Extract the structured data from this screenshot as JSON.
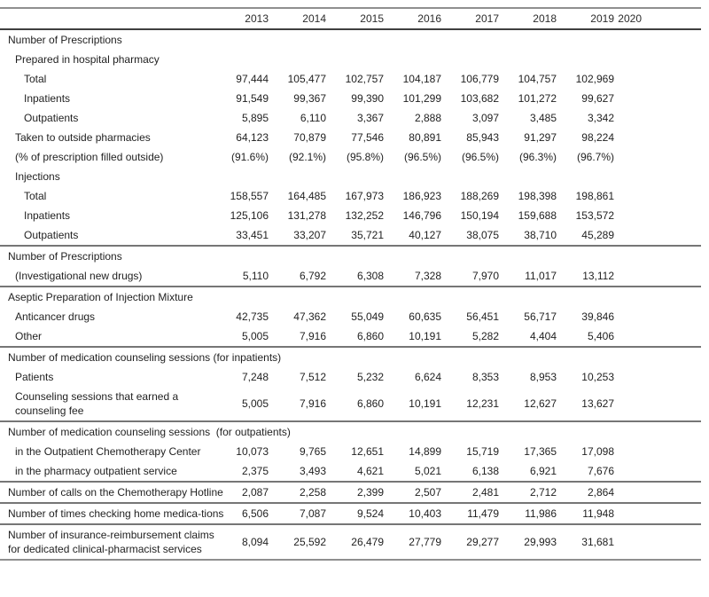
{
  "table": {
    "columns": [
      "2013",
      "2014",
      "2015",
      "2016",
      "2017",
      "2018",
      "2019",
      "2020"
    ],
    "rows": [
      {
        "label": "Number of Prescriptions",
        "indent": 0,
        "section": true,
        "values": [
          "",
          "",
          "",
          "",
          "",
          "",
          "",
          ""
        ]
      },
      {
        "label": "Prepared in hospital pharmacy",
        "indent": 1,
        "section": true,
        "values": [
          "",
          "",
          "",
          "",
          "",
          "",
          "",
          ""
        ]
      },
      {
        "label": "Total",
        "indent": 2,
        "values": [
          "97,444",
          "105,477",
          "102,757",
          "104,187",
          "106,779",
          "104,757",
          "102,969",
          ""
        ]
      },
      {
        "label": "Inpatients",
        "indent": 2,
        "values": [
          "91,549",
          "99,367",
          "99,390",
          "101,299",
          "103,682",
          "101,272",
          "99,627",
          ""
        ]
      },
      {
        "label": "Outpatients",
        "indent": 2,
        "values": [
          "5,895",
          "6,110",
          "3,367",
          "2,888",
          "3,097",
          "3,485",
          "3,342",
          ""
        ]
      },
      {
        "label": "Taken to outside pharmacies",
        "indent": 1,
        "values": [
          "64,123",
          "70,879",
          "77,546",
          "80,891",
          "85,943",
          "91,297",
          "98,224",
          ""
        ]
      },
      {
        "label": "(% of prescription filled outside)",
        "indent": 1,
        "values": [
          "(91.6%)",
          "(92.1%)",
          "(95.8%)",
          "(96.5%)",
          "(96.5%)",
          "(96.3%)",
          "(96.7%)",
          ""
        ]
      },
      {
        "label": "Injections",
        "indent": 1,
        "section": true,
        "values": [
          "",
          "",
          "",
          "",
          "",
          "",
          "",
          ""
        ]
      },
      {
        "label": "Total",
        "indent": 2,
        "values": [
          "158,557",
          "164,485",
          "167,973",
          "186,923",
          "188,269",
          "198,398",
          "198,861",
          ""
        ]
      },
      {
        "label": "Inpatients",
        "indent": 2,
        "values": [
          "125,106",
          "131,278",
          "132,252",
          "146,796",
          "150,194",
          "159,688",
          "153,572",
          ""
        ]
      },
      {
        "label": "Outpatients",
        "indent": 2,
        "divider_after": true,
        "values": [
          "33,451",
          "33,207",
          "35,721",
          "40,127",
          "38,075",
          "38,710",
          "45,289",
          ""
        ]
      },
      {
        "label": "Number of Prescriptions",
        "indent": 0,
        "section": true,
        "values": [
          "",
          "",
          "",
          "",
          "",
          "",
          "",
          ""
        ]
      },
      {
        "label": "(Investigational new drugs)",
        "indent": 1,
        "divider_after": true,
        "values": [
          "5,110",
          "6,792",
          "6,308",
          "7,328",
          "7,970",
          "11,017",
          "13,112",
          ""
        ]
      },
      {
        "label": "Aseptic Preparation of Injection Mixture",
        "indent": 0,
        "section": true,
        "values": [
          "",
          "",
          "",
          "",
          "",
          "",
          "",
          ""
        ]
      },
      {
        "label": "Anticancer drugs",
        "indent": 1,
        "values": [
          "42,735",
          "47,362",
          "55,049",
          "60,635",
          "56,451",
          "56,717",
          "39,846",
          ""
        ]
      },
      {
        "label": "Other",
        "indent": 1,
        "divider_after": true,
        "values": [
          "5,005",
          "7,916",
          "6,860",
          "10,191",
          "5,282",
          "4,404",
          "5,406",
          ""
        ]
      },
      {
        "label": "Number of medication counseling sessions (for inpatients)",
        "indent": 0,
        "section": true,
        "values": [
          "",
          "",
          "",
          "",
          "",
          "",
          "",
          ""
        ]
      },
      {
        "label": "Patients",
        "indent": 1,
        "values": [
          "7,248",
          "7,512",
          "5,232",
          "6,624",
          "8,353",
          "8,953",
          "10,253",
          ""
        ]
      },
      {
        "label": "Counseling sessions that earned a counseling fee",
        "indent": 1,
        "divider_after": true,
        "values": [
          "5,005",
          "7,916",
          "6,860",
          "10,191",
          "12,231",
          "12,627",
          "13,627",
          ""
        ]
      },
      {
        "label": "Number of medication counseling sessions  (for outpatients)",
        "indent": 0,
        "section": true,
        "values": [
          "",
          "",
          "",
          "",
          "",
          "",
          "",
          ""
        ]
      },
      {
        "label": "in the Outpatient Chemotherapy Center",
        "indent": 1,
        "values": [
          "10,073",
          "9,765",
          "12,651",
          "14,899",
          "15,719",
          "17,365",
          "17,098",
          ""
        ]
      },
      {
        "label": "in the pharmacy outpatient service",
        "indent": 1,
        "divider_after": true,
        "values": [
          "2,375",
          "3,493",
          "4,621",
          "5,021",
          "6,138",
          "6,921",
          "7,676",
          ""
        ]
      },
      {
        "label": "Number of calls on the Chemotherapy Hotline",
        "indent": 0,
        "divider_after": true,
        "values": [
          "2,087",
          "2,258",
          "2,399",
          "2,507",
          "2,481",
          "2,712",
          "2,864",
          ""
        ]
      },
      {
        "label": "Number of times checking home medica-tions",
        "indent": 0,
        "divider_after": true,
        "values": [
          "6,506",
          "7,087",
          "9,524",
          "10,403",
          "11,479",
          "11,986",
          "11,948",
          ""
        ]
      },
      {
        "label": "Number of insurance-reimbursement claims for dedicated clinical-pharmacist services",
        "indent": 0,
        "divider_after": true,
        "values": [
          "8,094",
          "25,592",
          "26,479",
          "27,779",
          "29,277",
          "29,993",
          "31,681",
          ""
        ]
      }
    ],
    "line_colors": {
      "top_rule": "#8f8f8f",
      "header_rule": "#3f3f3f",
      "section_rule": "#767676"
    },
    "text_color": "#1f1f1f"
  }
}
